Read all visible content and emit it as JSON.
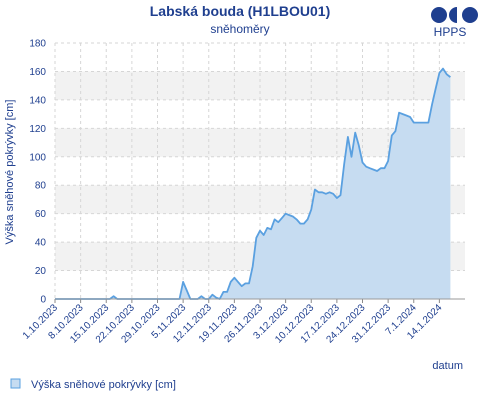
{
  "colors": {
    "text": "#1f3f8f",
    "line": "#5aa0e0",
    "fill": "#c6dcf1",
    "band": "#f2f2f2",
    "grid": "#d6d6d6",
    "logo": "#1f3f8f"
  },
  "logo": {
    "text": "HPPS",
    "icon": "hpps-logo-icon"
  },
  "chart_data": {
    "type": "area",
    "title": "Labská bouda (H1LBOU01)",
    "subtitle": "sněhoměry",
    "ylabel": "Výška sněhové pokrývky [cm]",
    "xlabel": "datum",
    "ylim": [
      0,
      180
    ],
    "yticks": [
      0,
      20,
      40,
      60,
      80,
      100,
      120,
      140,
      160,
      180
    ],
    "grid": true,
    "legend": {
      "position": "bottom-left",
      "label": "Výška sněhové pokrývky [cm]"
    },
    "xlim": [
      "2023-10-01",
      "2024-01-21"
    ],
    "xticks": [
      {
        "date": "2023-10-01",
        "label": "1.10.2023"
      },
      {
        "date": "2023-10-08",
        "label": "8.10.2023"
      },
      {
        "date": "2023-10-15",
        "label": "15.10.2023"
      },
      {
        "date": "2023-10-22",
        "label": "22.10.2023"
      },
      {
        "date": "2023-10-29",
        "label": "29.10.2023"
      },
      {
        "date": "2023-11-05",
        "label": "5.11.2023"
      },
      {
        "date": "2023-11-12",
        "label": "12.11.2023"
      },
      {
        "date": "2023-11-19",
        "label": "19.11.2023"
      },
      {
        "date": "2023-11-26",
        "label": "26.11.2023"
      },
      {
        "date": "2023-12-03",
        "label": "3.12.2023"
      },
      {
        "date": "2023-12-10",
        "label": "10.12.2023"
      },
      {
        "date": "2023-12-17",
        "label": "17.12.2023"
      },
      {
        "date": "2023-12-24",
        "label": "24.12.2023"
      },
      {
        "date": "2023-12-31",
        "label": "31.12.2023"
      },
      {
        "date": "2024-01-07",
        "label": "7.1.2024"
      },
      {
        "date": "2024-01-14",
        "label": "14.1.2024"
      }
    ],
    "series": [
      {
        "name": "Výška sněhové pokrývky [cm]",
        "points": [
          [
            "2023-10-01",
            0
          ],
          [
            "2023-10-16",
            0
          ],
          [
            "2023-10-17",
            2
          ],
          [
            "2023-10-18",
            0
          ],
          [
            "2023-11-04",
            0
          ],
          [
            "2023-11-05",
            12
          ],
          [
            "2023-11-06",
            6
          ],
          [
            "2023-11-07",
            0
          ],
          [
            "2023-11-09",
            0
          ],
          [
            "2023-11-10",
            2
          ],
          [
            "2023-11-11",
            0
          ],
          [
            "2023-11-12",
            0
          ],
          [
            "2023-11-13",
            3
          ],
          [
            "2023-11-14",
            1
          ],
          [
            "2023-11-15",
            0
          ],
          [
            "2023-11-16",
            5
          ],
          [
            "2023-11-17",
            5
          ],
          [
            "2023-11-18",
            12
          ],
          [
            "2023-11-19",
            15
          ],
          [
            "2023-11-20",
            12
          ],
          [
            "2023-11-21",
            9
          ],
          [
            "2023-11-22",
            11
          ],
          [
            "2023-11-23",
            11
          ],
          [
            "2023-11-24",
            23
          ],
          [
            "2023-11-25",
            43
          ],
          [
            "2023-11-26",
            48
          ],
          [
            "2023-11-27",
            45
          ],
          [
            "2023-11-28",
            50
          ],
          [
            "2023-11-29",
            49
          ],
          [
            "2023-11-30",
            56
          ],
          [
            "2023-12-01",
            54
          ],
          [
            "2023-12-02",
            57
          ],
          [
            "2023-12-03",
            60
          ],
          [
            "2023-12-04",
            59
          ],
          [
            "2023-12-05",
            58
          ],
          [
            "2023-12-06",
            56
          ],
          [
            "2023-12-07",
            53
          ],
          [
            "2023-12-08",
            53
          ],
          [
            "2023-12-09",
            56
          ],
          [
            "2023-12-10",
            63
          ],
          [
            "2023-12-11",
            77
          ],
          [
            "2023-12-12",
            75
          ],
          [
            "2023-12-13",
            75
          ],
          [
            "2023-12-14",
            74
          ],
          [
            "2023-12-15",
            75
          ],
          [
            "2023-12-16",
            74
          ],
          [
            "2023-12-17",
            71
          ],
          [
            "2023-12-18",
            73
          ],
          [
            "2023-12-19",
            95
          ],
          [
            "2023-12-20",
            114
          ],
          [
            "2023-12-21",
            100
          ],
          [
            "2023-12-22",
            117
          ],
          [
            "2023-12-23",
            108
          ],
          [
            "2023-12-24",
            96
          ],
          [
            "2023-12-25",
            93
          ],
          [
            "2023-12-26",
            92
          ],
          [
            "2023-12-27",
            91
          ],
          [
            "2023-12-28",
            90
          ],
          [
            "2023-12-29",
            92
          ],
          [
            "2023-12-30",
            92
          ],
          [
            "2023-12-31",
            97
          ],
          [
            "2024-01-01",
            115
          ],
          [
            "2024-01-02",
            118
          ],
          [
            "2024-01-03",
            131
          ],
          [
            "2024-01-04",
            130
          ],
          [
            "2024-01-05",
            129
          ],
          [
            "2024-01-06",
            128
          ],
          [
            "2024-01-07",
            124
          ],
          [
            "2024-01-08",
            124
          ],
          [
            "2024-01-09",
            124
          ],
          [
            "2024-01-10",
            124
          ],
          [
            "2024-01-11",
            124
          ],
          [
            "2024-01-12",
            137
          ],
          [
            "2024-01-13",
            148
          ],
          [
            "2024-01-14",
            159
          ],
          [
            "2024-01-15",
            162
          ],
          [
            "2024-01-16",
            158
          ],
          [
            "2024-01-17",
            156
          ]
        ]
      }
    ]
  }
}
